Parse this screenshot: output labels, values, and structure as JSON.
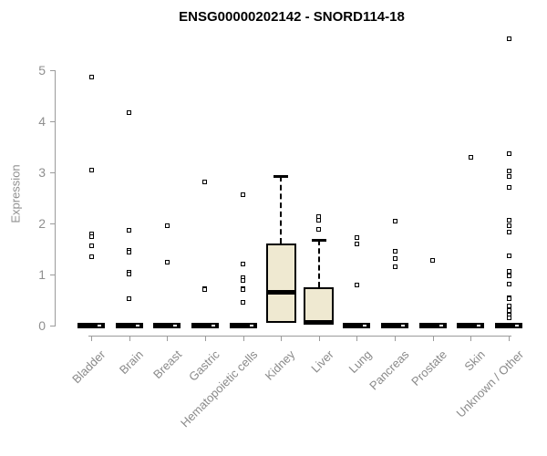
{
  "title": "ENSG00000202142 - SNORD114-18",
  "colors": {
    "axis": "#9b9b9b",
    "tick_label": "#8f8f8f",
    "box_fill": "#efe9d1",
    "line": "#000000",
    "background": "#ffffff"
  },
  "chart_data": {
    "type": "boxplot",
    "title": "ENSG00000202142 - SNORD114-18",
    "xlabel": "",
    "ylabel": "Expression",
    "ylim": [
      0,
      5.8
    ],
    "yticks": [
      0,
      1,
      2,
      3,
      4,
      5
    ],
    "grid": false,
    "legend": "none",
    "categories": [
      "Bladder",
      "Brain",
      "Breast",
      "Gastric",
      "Hematopoietic cells",
      "Kidney",
      "Liver",
      "Lung",
      "Pancreas",
      "Prostate",
      "Skin",
      "Unknown / Other"
    ],
    "series": [
      {
        "category": "Bladder",
        "q1": 0,
        "median": 0,
        "q3": 0,
        "whisker_low": 0,
        "whisker_high": 0,
        "outliers": [
          4.87,
          3.04,
          1.79,
          1.75,
          1.56,
          1.34
        ]
      },
      {
        "category": "Brain",
        "q1": 0,
        "median": 0,
        "q3": 0,
        "whisker_low": 0,
        "whisker_high": 0,
        "outliers": [
          4.17,
          1.87,
          1.47,
          1.43,
          1.05,
          1.01,
          0.52
        ]
      },
      {
        "category": "Breast",
        "q1": 0,
        "median": 0,
        "q3": 0,
        "whisker_low": 0,
        "whisker_high": 0,
        "outliers": [
          1.96,
          1.25
        ]
      },
      {
        "category": "Gastric",
        "q1": 0,
        "median": 0,
        "q3": 0,
        "whisker_low": 0,
        "whisker_high": 0,
        "outliers": [
          2.81,
          0.73,
          0.7
        ]
      },
      {
        "category": "Hematopoietic cells",
        "q1": 0,
        "median": 0,
        "q3": 0,
        "whisker_low": 0,
        "whisker_high": 0,
        "outliers": [
          2.57,
          1.21,
          0.93,
          0.89,
          0.73,
          0.7,
          0.46
        ]
      },
      {
        "category": "Kidney",
        "q1": 0.05,
        "median": 0.66,
        "q3": 1.6,
        "whisker_low": 0.05,
        "whisker_high": 2.92,
        "outliers": []
      },
      {
        "category": "Liver",
        "q1": 0.01,
        "median": 0.03,
        "q3": 0.75,
        "whisker_low": 0.01,
        "whisker_high": 1.67,
        "outliers": [
          2.14,
          2.07,
          1.89
        ]
      },
      {
        "category": "Lung",
        "q1": 0,
        "median": 0,
        "q3": 0,
        "whisker_low": 0,
        "whisker_high": 0,
        "outliers": [
          1.72,
          1.59,
          0.8
        ]
      },
      {
        "category": "Pancreas",
        "q1": 0,
        "median": 0,
        "q3": 0,
        "whisker_low": 0,
        "whisker_high": 0,
        "outliers": [
          2.04,
          1.45,
          1.32,
          1.16
        ]
      },
      {
        "category": "Prostate",
        "q1": 0,
        "median": 0,
        "q3": 0,
        "whisker_low": 0,
        "whisker_high": 0,
        "outliers": [
          1.27
        ]
      },
      {
        "category": "Skin",
        "q1": 0,
        "median": 0,
        "q3": 0,
        "whisker_low": 0,
        "whisker_high": 0,
        "outliers": [
          3.3
        ]
      },
      {
        "category": "Unknown / Other",
        "q1": 0,
        "median": 0,
        "q3": 0,
        "whisker_low": 0,
        "whisker_high": 0,
        "outliers": [
          5.61,
          3.36,
          3.03,
          2.92,
          2.7,
          2.07,
          1.95,
          1.83,
          1.37,
          1.07,
          0.98,
          0.82,
          0.55,
          0.52,
          0.39,
          0.3,
          0.2,
          0.16
        ]
      }
    ]
  }
}
